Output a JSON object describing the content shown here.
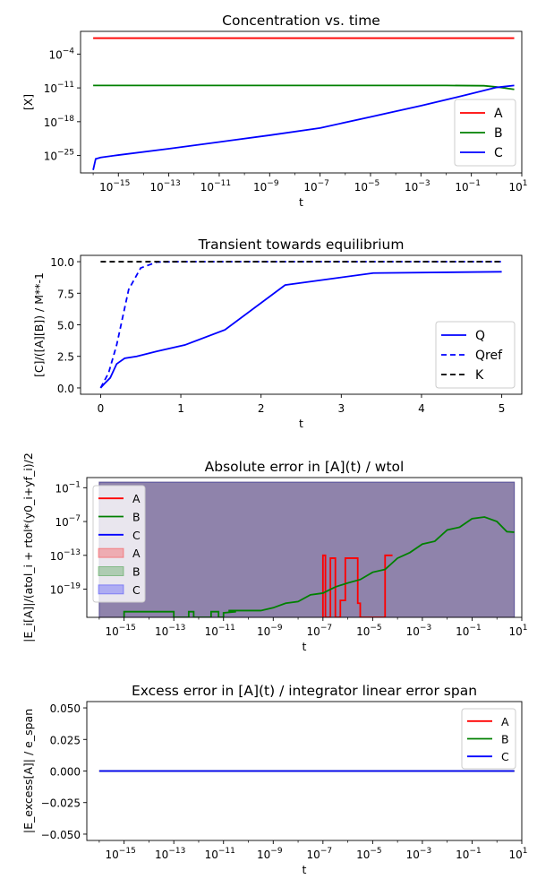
{
  "chart_data": [
    {
      "type": "line",
      "title": "Concentration vs. time",
      "xlabel": "t",
      "ylabel": "[X]",
      "xscale": "log",
      "yscale": "log",
      "xlim_exp": [
        -16.5,
        1.0
      ],
      "ylim_exp": [
        -28.6,
        0.7
      ],
      "xticks": [
        {
          "base": "10",
          "exp": "−15",
          "value": -15
        },
        {
          "base": "10",
          "exp": "−13",
          "value": -13
        },
        {
          "base": "10",
          "exp": "−11",
          "value": -11
        },
        {
          "base": "10",
          "exp": "−9",
          "value": -9
        },
        {
          "base": "10",
          "exp": "−7",
          "value": -7
        },
        {
          "base": "10",
          "exp": "−5",
          "value": -5
        },
        {
          "base": "10",
          "exp": "−3",
          "value": -3
        },
        {
          "base": "10",
          "exp": "−1",
          "value": -1
        },
        {
          "base": "10",
          "exp": "1",
          "value": 1
        }
      ],
      "yticks": [
        {
          "base": "10",
          "exp": "−4",
          "value": -4
        },
        {
          "base": "10",
          "exp": "−11",
          "value": -11
        },
        {
          "base": "10",
          "exp": "−18",
          "value": -18
        },
        {
          "base": "10",
          "exp": "−25",
          "value": -25
        }
      ],
      "legend": {
        "position": "lower right",
        "entries": [
          {
            "label": "A",
            "color": "#ff0000",
            "dash": ""
          },
          {
            "label": "B",
            "color": "#008000",
            "dash": ""
          },
          {
            "label": "C",
            "color": "#0000ff",
            "dash": ""
          }
        ]
      },
      "series": [
        {
          "name": "A",
          "color": "#ff0000",
          "points": [
            [
              -16.0,
              -0.7
            ],
            [
              0.7,
              -0.7
            ]
          ]
        },
        {
          "name": "B",
          "color": "#008000",
          "points": [
            [
              -16.0,
              -10.5
            ],
            [
              -2.0,
              -10.5
            ],
            [
              -0.5,
              -10.55
            ],
            [
              0.0,
              -10.8
            ],
            [
              0.7,
              -11.3
            ]
          ]
        },
        {
          "name": "C",
          "color": "#0000ff",
          "points": [
            [
              -16.0,
              -28.0
            ],
            [
              -15.9,
              -25.7
            ],
            [
              -15.7,
              -25.4
            ],
            [
              -15.0,
              -24.9
            ],
            [
              -13.0,
              -23.6
            ],
            [
              -11.0,
              -22.2
            ],
            [
              -9.0,
              -20.8
            ],
            [
              -7.0,
              -19.3
            ],
            [
              -5.0,
              -17.0
            ],
            [
              -3.0,
              -14.7
            ],
            [
              -1.0,
              -12.2
            ],
            [
              0.0,
              -10.9
            ],
            [
              0.7,
              -10.5
            ]
          ]
        }
      ]
    },
    {
      "type": "line",
      "title": "Transient towards equilibrium",
      "xlabel": "t",
      "ylabel": "[C]/([A][B]) / M**-1",
      "xlim": [
        -0.25,
        5.25
      ],
      "ylim": [
        -0.5,
        10.5
      ],
      "xticks": [
        {
          "label": "0",
          "value": 0
        },
        {
          "label": "1",
          "value": 1
        },
        {
          "label": "2",
          "value": 2
        },
        {
          "label": "3",
          "value": 3
        },
        {
          "label": "4",
          "value": 4
        },
        {
          "label": "5",
          "value": 5
        }
      ],
      "yticks": [
        {
          "label": "0.0",
          "value": 0
        },
        {
          "label": "2.5",
          "value": 2.5
        },
        {
          "label": "5.0",
          "value": 5
        },
        {
          "label": "7.5",
          "value": 7.5
        },
        {
          "label": "10.0",
          "value": 10
        }
      ],
      "legend": {
        "position": "lower right",
        "entries": [
          {
            "label": "Q",
            "color": "#0000ff",
            "dash": ""
          },
          {
            "label": "Qref",
            "color": "#0000ff",
            "dash": "6,4"
          },
          {
            "label": "K",
            "color": "#000000",
            "dash": "6,4"
          }
        ]
      },
      "series": [
        {
          "name": "Q",
          "color": "#0000ff",
          "dash": "",
          "points": [
            [
              0,
              0
            ],
            [
              0.05,
              0.35
            ],
            [
              0.12,
              0.8
            ],
            [
              0.2,
              1.9
            ],
            [
              0.3,
              2.35
            ],
            [
              0.45,
              2.5
            ],
            [
              0.7,
              2.9
            ],
            [
              1.05,
              3.4
            ],
            [
              1.55,
              4.6
            ],
            [
              2.3,
              8.15
            ],
            [
              3.4,
              9.1
            ],
            [
              5.0,
              9.2
            ]
          ]
        },
        {
          "name": "Qref",
          "color": "#0000ff",
          "dash": "6,4",
          "points": [
            [
              0,
              0
            ],
            [
              0.1,
              1.2
            ],
            [
              0.2,
              3.4
            ],
            [
              0.35,
              7.8
            ],
            [
              0.5,
              9.5
            ],
            [
              0.7,
              9.97
            ],
            [
              1.0,
              10.0
            ],
            [
              5.0,
              10.0
            ]
          ]
        },
        {
          "name": "K",
          "color": "#000000",
          "dash": "6,4",
          "points": [
            [
              0,
              10.0
            ],
            [
              5.0,
              10.0
            ]
          ]
        }
      ]
    },
    {
      "type": "line",
      "title": "Absolute error in [A](t) / wtol",
      "xlabel": "t",
      "ylabel": "|E_i[A]|/(atol_i + rtol*(y0_i+yf_i)/2",
      "xscale": "log",
      "yscale": "log",
      "xlim_exp": [
        -16.5,
        1.0
      ],
      "ylim_exp": [
        -24.0,
        0.8
      ],
      "xticks": [
        {
          "base": "10",
          "exp": "−15",
          "value": -15
        },
        {
          "base": "10",
          "exp": "−13",
          "value": -13
        },
        {
          "base": "10",
          "exp": "−11",
          "value": -11
        },
        {
          "base": "10",
          "exp": "−9",
          "value": -9
        },
        {
          "base": "10",
          "exp": "−7",
          "value": -7
        },
        {
          "base": "10",
          "exp": "−5",
          "value": -5
        },
        {
          "base": "10",
          "exp": "−3",
          "value": -3
        },
        {
          "base": "10",
          "exp": "−1",
          "value": -1
        },
        {
          "base": "10",
          "exp": "1",
          "value": 1
        }
      ],
      "yticks": [
        {
          "base": "10",
          "exp": "−1",
          "value": -1
        },
        {
          "base": "10",
          "exp": "−7",
          "value": -7
        },
        {
          "base": "10",
          "exp": "−13",
          "value": -13
        },
        {
          "base": "10",
          "exp": "−19",
          "value": -19
        }
      ],
      "legend": {
        "position": "upper left",
        "entries": [
          {
            "label": "A",
            "color": "#ff0000",
            "dash": ""
          },
          {
            "label": "B",
            "color": "#008000",
            "dash": ""
          },
          {
            "label": "C",
            "color": "#0000ff",
            "dash": ""
          },
          {
            "label": "A",
            "color": "#ff0000",
            "fill": true
          },
          {
            "label": "B",
            "color": "#008000",
            "fill": true
          },
          {
            "label": "C",
            "color": "#0000ff",
            "fill": true
          }
        ]
      },
      "bands": [
        {
          "name": "A",
          "color": "#ff0000",
          "x": [
            -16.0,
            0.7
          ],
          "y": [
            -24.0,
            0.0
          ]
        },
        {
          "name": "B",
          "color": "#008000",
          "x": [
            -16.0,
            0.7
          ],
          "y": [
            -24.0,
            0.0
          ]
        },
        {
          "name": "C",
          "color": "#0000ff",
          "x": [
            -16.0,
            0.7
          ],
          "y": [
            -24.0,
            0.0
          ]
        }
      ],
      "series": [
        {
          "name": "A",
          "color": "#ff0000",
          "points": [
            [
              -7.0,
              -24.0
            ],
            [
              -7.0,
              -13.0
            ],
            [
              -6.9,
              -13.0
            ],
            [
              -6.9,
              -24.0
            ],
            [
              -6.7,
              -24.0
            ],
            [
              -6.7,
              -13.5
            ],
            [
              -6.5,
              -13.5
            ],
            [
              -6.5,
              -24.0
            ],
            [
              -6.3,
              -24.0
            ],
            [
              -6.3,
              -21.0
            ],
            [
              -6.1,
              -21.0
            ],
            [
              -6.1,
              -13.5
            ],
            [
              -5.6,
              -13.5
            ],
            [
              -5.6,
              -21.5
            ],
            [
              -5.5,
              -21.5
            ],
            [
              -5.5,
              -24.0
            ],
            [
              -4.5,
              -24.0
            ],
            [
              -4.5,
              -13.0
            ],
            [
              -4.2,
              -13.0
            ]
          ]
        },
        {
          "name": "B",
          "color": "#008000",
          "points": [
            [
              -15.0,
              -24.0
            ],
            [
              -15.0,
              -23.0
            ],
            [
              -13.0,
              -23.0
            ],
            [
              -13.0,
              -24.0
            ],
            [
              -12.4,
              -24.0
            ],
            [
              -12.4,
              -23.0
            ],
            [
              -12.2,
              -23.0
            ],
            [
              -12.2,
              -24.0
            ],
            [
              -11.5,
              -24.0
            ],
            [
              -11.5,
              -23.0
            ],
            [
              -11.2,
              -23.0
            ],
            [
              -11.2,
              -24.0
            ],
            [
              -11.0,
              -24.0
            ],
            [
              -11.0,
              -23.2
            ],
            [
              -10.5,
              -23.0
            ],
            [
              -10.8,
              -22.8
            ],
            [
              -9.5,
              -22.8
            ],
            [
              -9.0,
              -22.3
            ],
            [
              -8.5,
              -21.5
            ],
            [
              -8.0,
              -21.2
            ],
            [
              -7.5,
              -20.0
            ],
            [
              -7.0,
              -19.7
            ],
            [
              -6.5,
              -18.6
            ],
            [
              -6.0,
              -17.9
            ],
            [
              -5.5,
              -17.3
            ],
            [
              -5.0,
              -16.0
            ],
            [
              -4.5,
              -15.5
            ],
            [
              -4.0,
              -13.5
            ],
            [
              -3.5,
              -12.5
            ],
            [
              -3.0,
              -11.0
            ],
            [
              -2.5,
              -10.5
            ],
            [
              -2.0,
              -8.5
            ],
            [
              -1.5,
              -8.0
            ],
            [
              -1.0,
              -6.5
            ],
            [
              -0.5,
              -6.2
            ],
            [
              0.0,
              -7.0
            ],
            [
              0.4,
              -8.8
            ],
            [
              0.7,
              -8.9
            ]
          ]
        },
        {
          "name": "C",
          "color": "#0000ff",
          "points": []
        }
      ]
    },
    {
      "type": "line",
      "title": "Excess error in [A](t) / integrator linear error span",
      "xlabel": "t",
      "ylabel": "|E_excess[A]| / e_span",
      "xscale": "log",
      "xlim_exp": [
        -16.5,
        1.0
      ],
      "ylim": [
        -0.055,
        0.055
      ],
      "xticks": [
        {
          "base": "10",
          "exp": "−15",
          "value": -15
        },
        {
          "base": "10",
          "exp": "−13",
          "value": -13
        },
        {
          "base": "10",
          "exp": "−11",
          "value": -11
        },
        {
          "base": "10",
          "exp": "−9",
          "value": -9
        },
        {
          "base": "10",
          "exp": "−7",
          "value": -7
        },
        {
          "base": "10",
          "exp": "−5",
          "value": -5
        },
        {
          "base": "10",
          "exp": "−3",
          "value": -3
        },
        {
          "base": "10",
          "exp": "−1",
          "value": -1
        },
        {
          "base": "10",
          "exp": "1",
          "value": 1
        }
      ],
      "yticks": [
        {
          "label": "0.050",
          "value": 0.05
        },
        {
          "label": "0.025",
          "value": 0.025
        },
        {
          "label": "0.000",
          "value": 0
        },
        {
          "label": "−0.025",
          "value": -0.025
        },
        {
          "label": "−0.050",
          "value": -0.05
        }
      ],
      "legend": {
        "position": "upper right",
        "entries": [
          {
            "label": "A",
            "color": "#ff0000",
            "dash": ""
          },
          {
            "label": "B",
            "color": "#008000",
            "dash": ""
          },
          {
            "label": "C",
            "color": "#0000ff",
            "dash": ""
          }
        ]
      },
      "series": [
        {
          "name": "A",
          "color": "#ff0000",
          "points": [
            [
              -16.0,
              0
            ],
            [
              0.7,
              0
            ]
          ]
        },
        {
          "name": "B",
          "color": "#008000",
          "points": [
            [
              -16.0,
              0
            ],
            [
              0.7,
              0
            ]
          ]
        },
        {
          "name": "C",
          "color": "#0000ff",
          "points": [
            [
              -16.0,
              0
            ],
            [
              0.7,
              0
            ]
          ]
        }
      ]
    }
  ]
}
